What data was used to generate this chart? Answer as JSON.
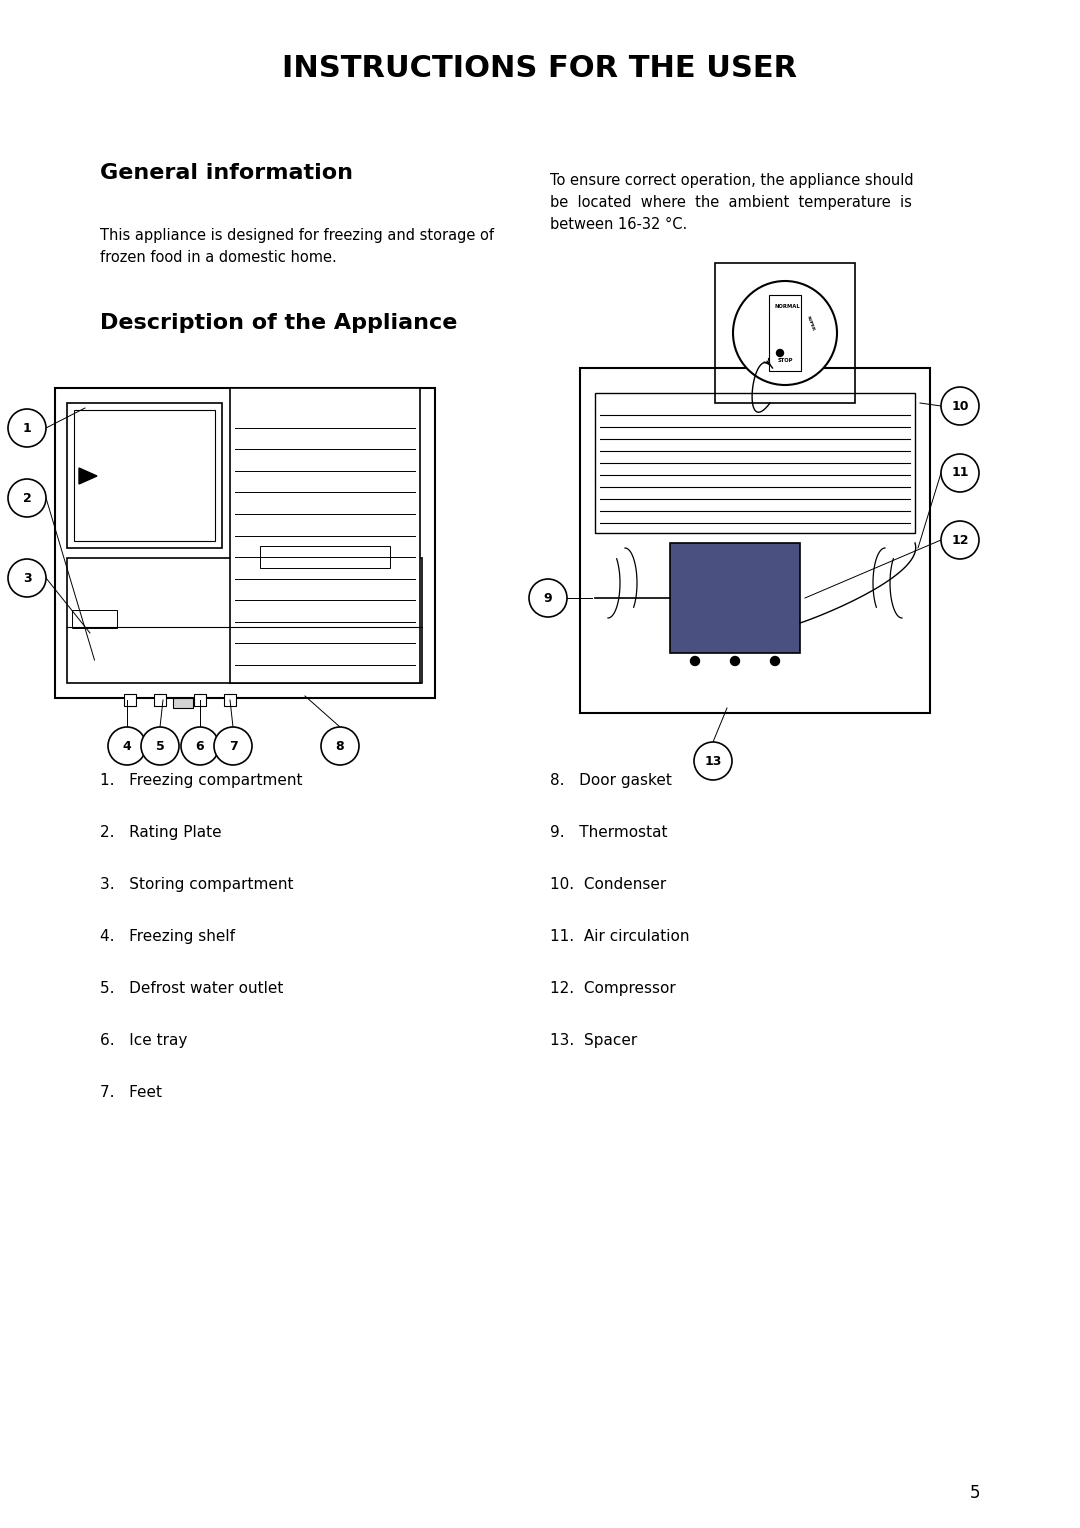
{
  "title": "INSTRUCTIONS FOR THE USER",
  "section1_title": "General information",
  "section1_left": "This appliance is designed for freezing and storage of\nfrozen food in a domestic home.",
  "section1_right": "To ensure correct operation, the appliance should\nbe  located  where  the  ambient  temperature  is\nbetween 16-32 °C.",
  "section2_title": "Description of the Appliance",
  "items_left": [
    "1.   Freezing compartment",
    "2.   Rating Plate",
    "3.   Storing compartment",
    "4.   Freezing shelf",
    "5.   Defrost water outlet",
    "6.   Ice tray",
    "7.   Feet"
  ],
  "items_right": [
    "8.   Door gasket",
    "9.   Thermostat",
    "10.  Condenser",
    "11.  Air circulation",
    "12.  Compressor",
    "13.  Spacer"
  ],
  "page_number": "5",
  "bg_color": "#ffffff",
  "text_color": "#000000"
}
